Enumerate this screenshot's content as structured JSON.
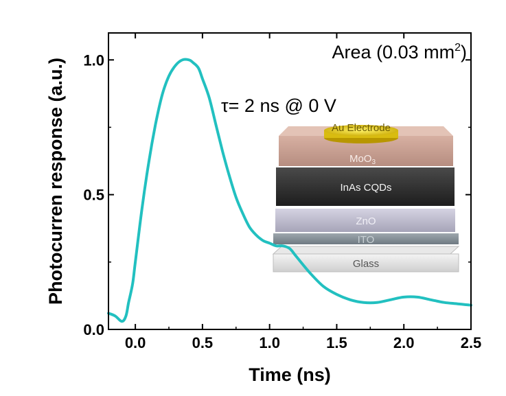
{
  "chart_data": {
    "type": "line",
    "xlabel": "Time (ns)",
    "ylabel": "Photocurren response (a.u.)",
    "xlim": [
      -0.2,
      2.5
    ],
    "ylim": [
      0.0,
      1.1
    ],
    "xticks": [
      0.0,
      0.5,
      1.0,
      1.5,
      2.0,
      2.5
    ],
    "xtick_labels": [
      "0.0",
      "0.5",
      "1.0",
      "1.5",
      "2.0",
      "2.5"
    ],
    "yticks": [
      0.0,
      0.5,
      1.0
    ],
    "ytick_labels": [
      "0.0",
      "0.5",
      "1.0"
    ],
    "grid": false,
    "line_color": "#22c0c0",
    "series": [
      {
        "x": [
          -0.2,
          -0.15,
          -0.1,
          -0.07,
          -0.05,
          -0.02,
          0.0,
          0.05,
          0.1,
          0.15,
          0.2,
          0.25,
          0.3,
          0.35,
          0.4,
          0.43,
          0.47,
          0.5,
          0.55,
          0.6,
          0.65,
          0.7,
          0.75,
          0.8,
          0.85,
          0.9,
          0.95,
          1.0,
          1.05,
          1.1,
          1.15,
          1.2,
          1.3,
          1.4,
          1.5,
          1.6,
          1.7,
          1.8,
          1.9,
          2.0,
          2.1,
          2.2,
          2.3,
          2.4,
          2.5
        ],
        "y": [
          0.06,
          0.05,
          0.03,
          0.05,
          0.1,
          0.17,
          0.25,
          0.45,
          0.62,
          0.76,
          0.87,
          0.94,
          0.98,
          1.0,
          1.0,
          0.99,
          0.97,
          0.93,
          0.86,
          0.76,
          0.66,
          0.57,
          0.49,
          0.43,
          0.38,
          0.35,
          0.33,
          0.32,
          0.31,
          0.31,
          0.3,
          0.27,
          0.21,
          0.16,
          0.13,
          0.11,
          0.1,
          0.1,
          0.11,
          0.12,
          0.12,
          0.11,
          0.1,
          0.095,
          0.09
        ]
      }
    ],
    "annotations": {
      "area": "Area (0.03 mm",
      "area_sup": "2",
      "area_close": ")",
      "tau": "τ= 2 ns @ 0 V"
    },
    "inset_layers": {
      "electrode": "Au Electrode",
      "moo3": "MoO",
      "moo3_sub": "3",
      "inas": "InAs CQDs",
      "zno": "ZnO",
      "ito": "ITO",
      "glass": "Glass"
    }
  }
}
